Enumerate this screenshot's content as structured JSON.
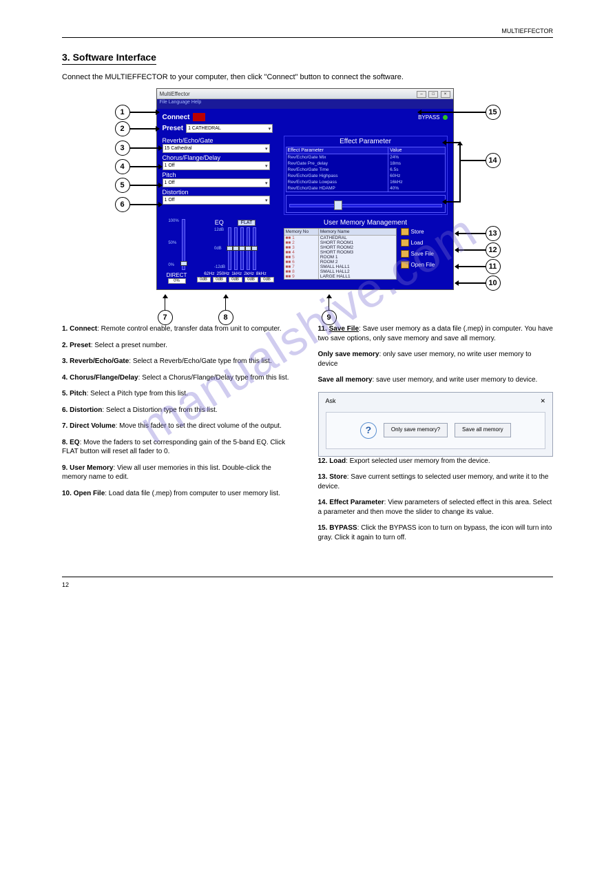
{
  "header_right": "MULTIEFFECTOR",
  "section_title": "3. Software Interface",
  "intro": "Connect the MULTIEFFECTOR to your computer, then click \"Connect\" button to connect the software.",
  "window": {
    "title": "MultiEffector",
    "menu": "File   Language   Help",
    "connect": "Connect",
    "bypass": "BYPASS",
    "preset_label": "Preset",
    "preset_value": "1 CATHEDRAL",
    "sections": {
      "reverb_label": "Reverb/Echo/Gate",
      "reverb_value": "15 Cathedral",
      "chorus_label": "Chorus/Flange/Delay",
      "chorus_value": "1 Off",
      "pitch_label": "Pitch",
      "pitch_value": "1 Off",
      "distortion_label": "Distortion",
      "distortion_value": "1 Off"
    },
    "effect_params": {
      "title": "Effect Parameter",
      "head_param": "Effect Parameter",
      "head_value": "Value",
      "rows": [
        {
          "p": "Rev/Echo/Gate Mix",
          "v": "24%"
        },
        {
          "p": "Rev/Gate Pre_delay",
          "v": "18ms"
        },
        {
          "p": "Rev/Echo/Gate Time",
          "v": "6.5s"
        },
        {
          "p": "Rev/Echo/Gate Highpass",
          "v": "60Hz"
        },
        {
          "p": "Rev/Echo/Gate Lowpass",
          "v": "16kHz"
        },
        {
          "p": "Rev/Echo/Gate HDAMP",
          "v": "40%"
        }
      ]
    },
    "eq": {
      "title": "EQ",
      "flat": "FLAT",
      "scale_top": "12dB",
      "scale_mid": "0dB",
      "scale_bot": "-12dB",
      "freqs": [
        "62Hz",
        "250Hz",
        "1kHz",
        "2kHz",
        "8kHz"
      ],
      "readouts": [
        "0dB",
        "0dB",
        "0dB",
        "0dB",
        "0dB"
      ]
    },
    "direct": {
      "label": "DIRECT",
      "scale_top": "100%",
      "scale_mid": "50%",
      "scale_bot": "0%",
      "readout": "0%"
    },
    "umm": {
      "title": "User Memory Management",
      "head_no": "Memory No",
      "head_name": "Memory Name",
      "rows": [
        {
          "n": "1",
          "name": "CATHEDRAL"
        },
        {
          "n": "2",
          "name": "SHORT ROOM1"
        },
        {
          "n": "3",
          "name": "SHORT ROOM2"
        },
        {
          "n": "4",
          "name": "SHORT ROOM3"
        },
        {
          "n": "5",
          "name": "ROOM 1"
        },
        {
          "n": "6",
          "name": "ROOM 2"
        },
        {
          "n": "7",
          "name": "SMALL HALL1"
        },
        {
          "n": "8",
          "name": "SMALL HALL2"
        },
        {
          "n": "9",
          "name": "LARGE HALL1"
        }
      ],
      "store": "Store",
      "load": "Load",
      "save_file": "Save File",
      "open_file": "Open File"
    }
  },
  "callouts": {
    "c1": "1",
    "c2": "2",
    "c3": "3",
    "c4": "4",
    "c5": "5",
    "c6": "6",
    "c7": "7",
    "c8": "8",
    "c9": "9",
    "c10": "10",
    "c11": "11",
    "c12": "12",
    "c13": "13",
    "c14": "14",
    "c15": "15"
  },
  "defs_left": [
    {
      "n": "1.",
      "title": "Connect",
      "body": ": Remote control enable, transfer data from unit to computer."
    },
    {
      "n": "2.",
      "title": "Preset",
      "body": ": Select a preset number."
    },
    {
      "n": "3.",
      "title": "Reverb/Echo/Gate",
      "body": ": Select a Reverb/Echo/Gate type from this list."
    },
    {
      "n": "4.",
      "title": "Chorus/Flange/Delay",
      "body": ": Select a Chorus/Flange/Delay type from this list."
    },
    {
      "n": "5.",
      "title": "Pitch",
      "body": ": Select a Pitch type from this list."
    },
    {
      "n": "6.",
      "title": "Distortion",
      "body": ": Select a Distortion type from this list."
    },
    {
      "n": "7.",
      "title": "Direct Volume",
      "body": ": Move this fader to set the direct volume of the output."
    },
    {
      "n": "8.",
      "title": "EQ",
      "body": ": Move the faders to set corresponding gain of the 5-band EQ. Click FLAT button will reset all fader to 0."
    },
    {
      "n": "9.",
      "title": "User Memory",
      "body": ": View all user memories in this list. Double-click the memory name to edit."
    },
    {
      "n": "10.",
      "title": "Open File",
      "body": ": Load data file (.mep) from computer to user memory list."
    }
  ],
  "defs_right": [
    {
      "n": "11.",
      "title": "Save File",
      "body": ": Save user memory as a data file (.mep) in computer. You have two save options, only save memory and save all memory."
    },
    {
      "n": "",
      "title": "Only save memory",
      "body": ": only save user memory, no write user memory to device"
    },
    {
      "n": "",
      "title": "Save all memory",
      "body": ": save user memory, and write user memory to device."
    },
    {
      "n": "12.",
      "title": "Load",
      "body": ": Export selected user memory from the device."
    },
    {
      "n": "13.",
      "title": "Store",
      "body": ": Save current settings to selected user memory, and write it to the device."
    },
    {
      "n": "14.",
      "title": "Effect Parameter",
      "body": ": View parameters of selected effect in this area. Select a parameter and then move the slider to change its value."
    },
    {
      "n": "15.",
      "title": "BYPASS",
      "body": ": Click the BYPASS icon to turn on bypass, the icon will turn into gray. Click it again to turn off."
    }
  ],
  "dialog": {
    "title": "Ask",
    "btn1": "Only save memory?",
    "btn2": "Save all memory"
  },
  "page_number": "12",
  "watermark": "manualshive.com"
}
